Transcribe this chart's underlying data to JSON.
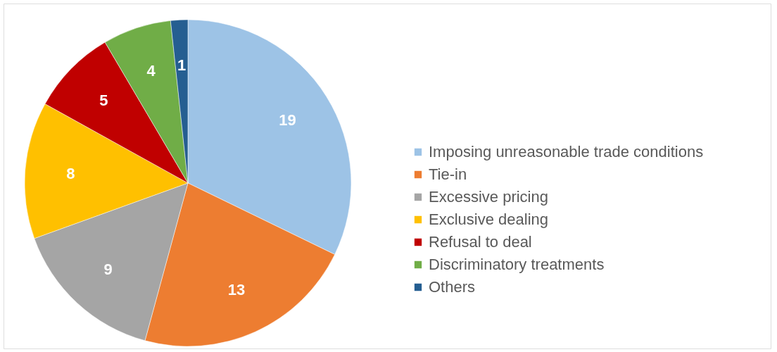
{
  "chart_data": {
    "type": "pie",
    "categories": [
      "Imposing unreasonable trade conditions",
      "Tie-in",
      "Excessive pricing",
      "Exclusive dealing",
      "Refusal to deal",
      "Discriminatory treatments",
      "Others"
    ],
    "values": [
      19,
      13,
      9,
      8,
      5,
      4,
      1
    ],
    "colors": [
      "#9dc3e6",
      "#ed7d31",
      "#a5a5a5",
      "#ffc000",
      "#c00000",
      "#70ad47",
      "#255e91"
    ],
    "data_labels": true,
    "legend": "right"
  }
}
